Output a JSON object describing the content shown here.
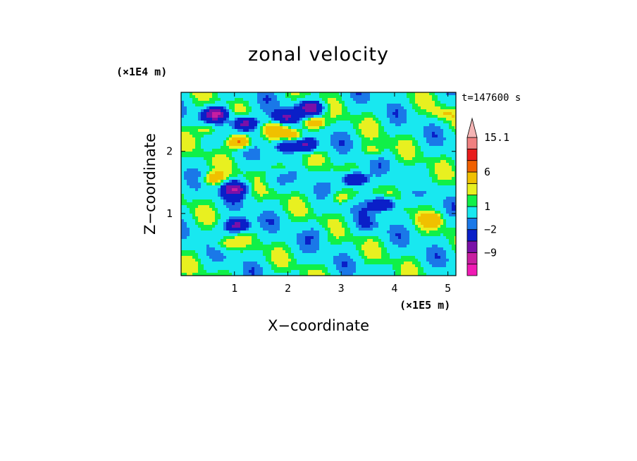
{
  "chart_data": {
    "type": "heatmap",
    "title": "zonal velocity",
    "xlabel": "X−coordinate",
    "ylabel": "Z−coordinate",
    "x_unit": "(×1E5 m)",
    "y_unit": "(×1E4 m)",
    "time_label": "t=147600 s",
    "xlim": [
      0,
      5.15
    ],
    "ylim": [
      0,
      2.95
    ],
    "x_ticks": [
      1,
      2,
      3,
      4,
      5
    ],
    "y_ticks": [
      1,
      2
    ],
    "colorbar": {
      "levels": [
        "-12",
        "-9",
        "-6",
        "-2",
        "-1",
        "1",
        "2",
        "3",
        "6",
        "9",
        "12",
        "15.1"
      ],
      "labels": [
        {
          "text": "15.1",
          "level": "15.1"
        },
        {
          "text": "6",
          "level": "6"
        },
        {
          "text": "1",
          "level": "1"
        },
        {
          "text": "−2",
          "level": "-2"
        },
        {
          "text": "−9",
          "level": "-9"
        }
      ],
      "colors": [
        "#f01ab4",
        "#c81ea0",
        "#7a10a8",
        "#0a1fc8",
        "#1a78e8",
        "#18e8f0",
        "#10f048",
        "#e8f020",
        "#f0c000",
        "#f06000",
        "#e81c1c",
        "#f08080",
        "#f4b4b4"
      ],
      "extend": "max"
    },
    "features": [
      {
        "x": 0.65,
        "z": 2.6,
        "u": -10
      },
      {
        "x": 1.2,
        "z": 2.45,
        "u": -9
      },
      {
        "x": 1.95,
        "z": 2.55,
        "u": -7
      },
      {
        "x": 2.45,
        "z": 2.7,
        "u": -9
      },
      {
        "x": 2.45,
        "z": 2.45,
        "u": 6
      },
      {
        "x": 1.75,
        "z": 2.35,
        "u": 3
      },
      {
        "x": 2.1,
        "z": 2.25,
        "u": 4
      },
      {
        "x": 2.35,
        "z": 2.1,
        "u": -8
      },
      {
        "x": 1.95,
        "z": 2.1,
        "u": -6
      },
      {
        "x": 1.1,
        "z": 2.15,
        "u": 7
      },
      {
        "x": 0.5,
        "z": 2.35,
        "u": 4
      },
      {
        "x": 1.0,
        "z": 1.4,
        "u": -9
      },
      {
        "x": 1.05,
        "z": 0.8,
        "u": -9
      },
      {
        "x": 3.25,
        "z": 1.55,
        "u": -9
      },
      {
        "x": 3.8,
        "z": 1.15,
        "u": -8
      },
      {
        "x": 0.6,
        "z": 1.55,
        "u": 4
      },
      {
        "x": 0.8,
        "z": 0.5,
        "u": 3
      },
      {
        "x": 1.9,
        "z": 1.75,
        "u": 3
      },
      {
        "x": 2.95,
        "z": 1.25,
        "u": 3
      },
      {
        "x": 4.4,
        "z": 1.5,
        "u": 3
      },
      {
        "x": 4.7,
        "z": 0.9,
        "u": 3
      },
      {
        "x": 3.6,
        "z": 2.0,
        "u": 3
      },
      {
        "x": 2.6,
        "z": 0.7,
        "u": -1.5
      },
      {
        "x": 3.5,
        "z": 0.8,
        "u": -1.5
      },
      {
        "x": 1.7,
        "z": 1.5,
        "u": -1.5
      },
      {
        "x": 4.9,
        "z": 2.6,
        "u": 2
      }
    ]
  }
}
